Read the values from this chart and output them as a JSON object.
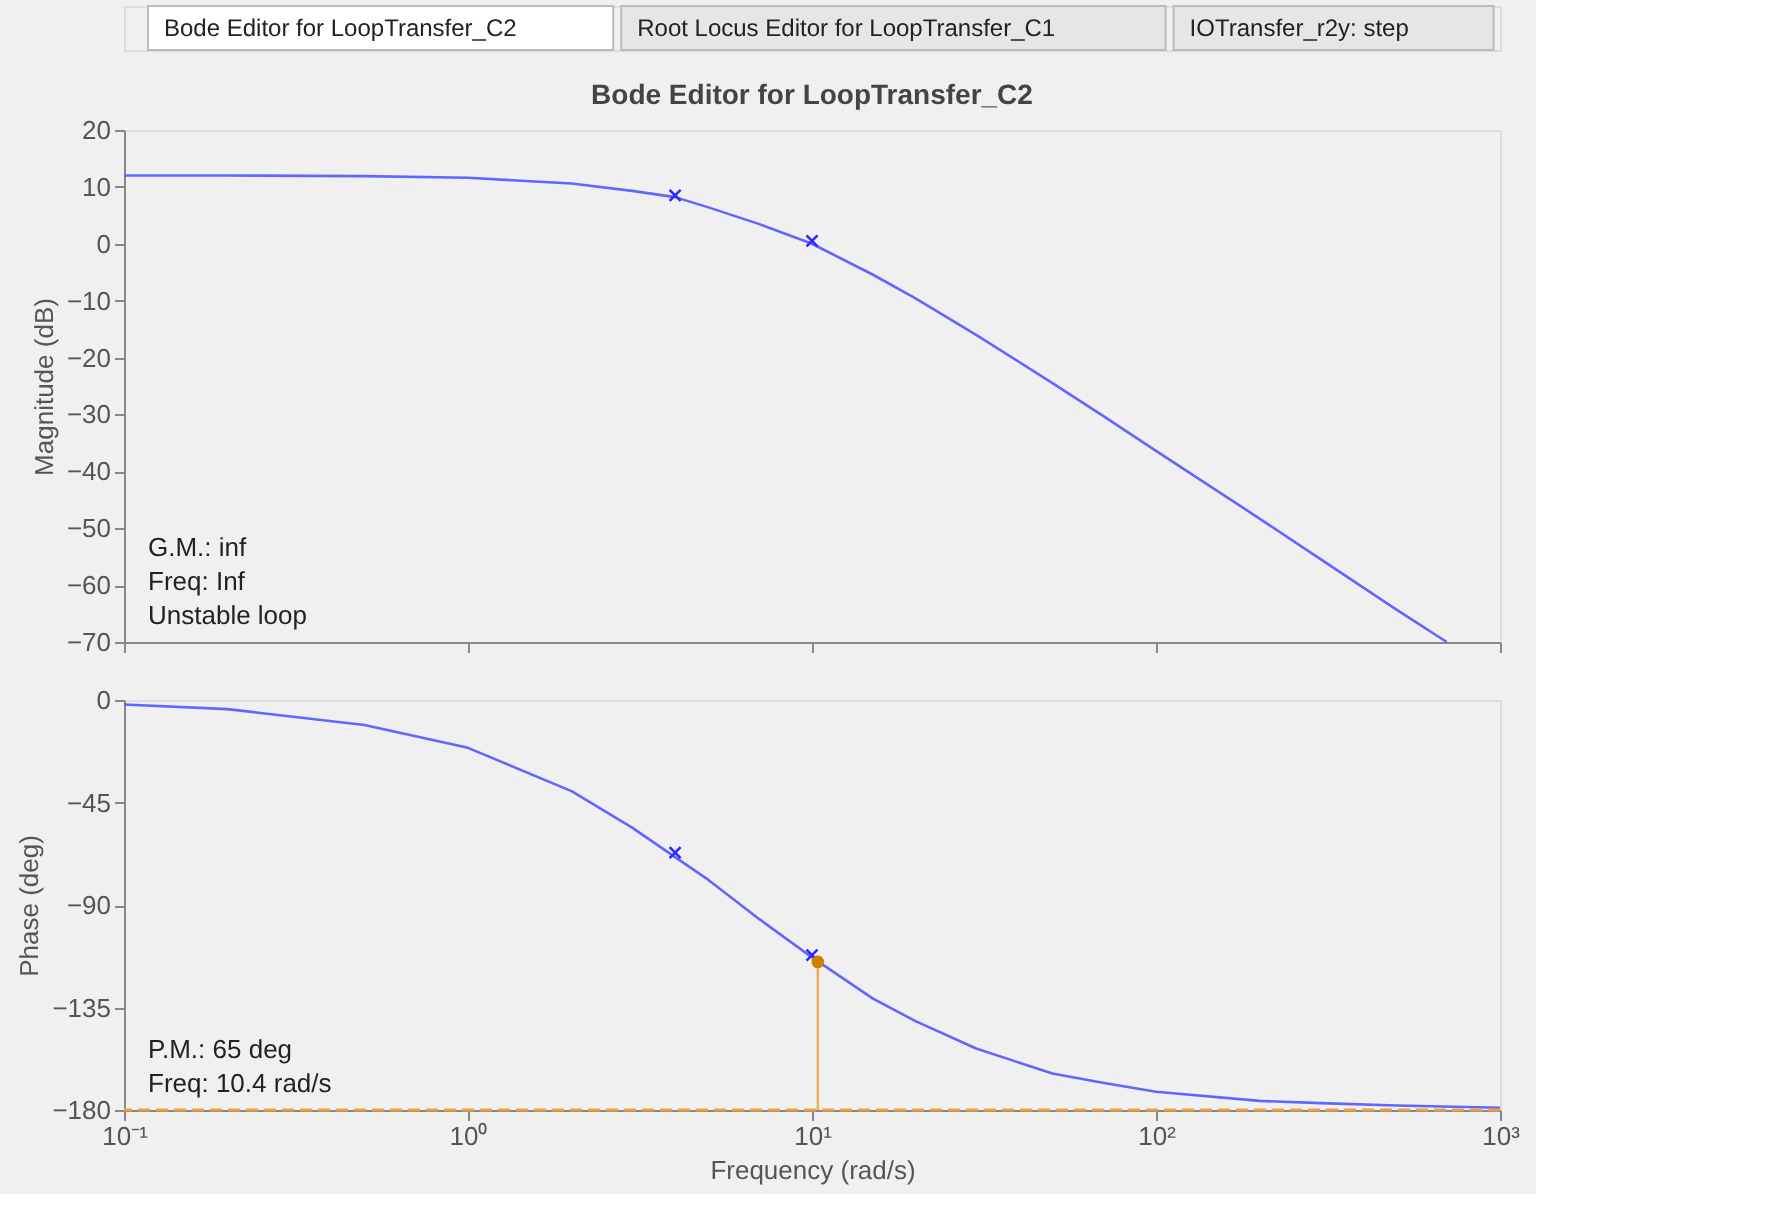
{
  "chart_data": [
    {
      "type": "other",
      "annotations": [
        "Bode Editor for LoopTransfer_C2",
        "Root Locus Editor for LoopTransfer_C1",
        "IOTransfer_r2y: step"
      ]
    },
    {
      "type": "line",
      "title": "Bode Editor for LoopTransfer_C2",
      "ylabel": "Magnitude (dB)",
      "xlim": [
        0.1,
        1000
      ],
      "ylim": [
        -70,
        20
      ],
      "xticks": [
        {
          "value": 0.1,
          "label": null
        },
        {
          "value": 1,
          "label": null
        },
        {
          "value": 10,
          "label": null
        },
        {
          "value": 100,
          "label": null
        },
        {
          "value": 1000,
          "label": null
        }
      ],
      "yticks": [
        -70,
        -60,
        -50,
        -40,
        -30,
        -20,
        -10,
        0,
        10,
        20
      ],
      "log": "x",
      "grid": false,
      "tick_labels": "y",
      "series": [
        {
          "type": "line",
          "color": "#6464ff",
          "x": [
            0.1,
            0.2,
            0.5,
            1,
            2,
            3,
            4,
            5,
            7,
            10,
            15,
            20,
            30,
            50,
            70,
            100,
            200,
            300,
            500,
            700
          ],
          "values": [
            12.0,
            12.0,
            11.9,
            11.6,
            10.6,
            9.3,
            8.2,
            6.4,
            3.5,
            0.0,
            -5.4,
            -9.6,
            -16.0,
            -24.5,
            -30.2,
            -36.4,
            -48.3,
            -55.4,
            -64.3,
            -70
          ]
        },
        {
          "type": "scatter",
          "marker": "cross",
          "color": "#2a2aff",
          "x": [
            4,
            10
          ],
          "values": [
            8.5,
            0.5
          ]
        }
      ],
      "annotations": [
        "G.M.: inf",
        "Freq: Inf",
        "Unstable loop"
      ]
    },
    {
      "type": "line",
      "xlabel": "Frequency (rad/s)",
      "ylabel": "Phase (deg)",
      "xlim": [
        0.1,
        1000
      ],
      "ylim": [
        -180,
        0
      ],
      "xticks": [
        {
          "value": 0.1,
          "label": "10⁻¹"
        },
        {
          "value": 1,
          "label": "10⁰"
        },
        {
          "value": 10,
          "label": "10¹"
        },
        {
          "value": 100,
          "label": "10²"
        },
        {
          "value": 1000,
          "label": "10³"
        }
      ],
      "yticks": [
        -180,
        -135,
        -90,
        -45,
        0
      ],
      "log": "x",
      "grid": false,
      "series": [
        {
          "type": "line",
          "color": "#6464ff",
          "x": [
            0.1,
            0.2,
            0.5,
            1,
            2,
            3,
            4,
            5,
            7,
            10,
            15,
            20,
            30,
            50,
            70,
            100,
            200,
            300,
            500,
            1000
          ],
          "values": [
            -2,
            -4,
            -11,
            -21,
            -40,
            -56,
            -69,
            -79,
            -96,
            -113,
            -131,
            -141,
            -153,
            -164,
            -168,
            -172,
            -176,
            -177,
            -178,
            -179
          ]
        },
        {
          "type": "scatter",
          "marker": "cross",
          "color": "#2a2aff",
          "x": [
            4,
            10
          ],
          "values": [
            -67,
            -112
          ]
        },
        {
          "type": "line",
          "color": "#e8b060",
          "x": [
            10.4,
            10.4
          ],
          "values": [
            -180,
            -115
          ]
        },
        {
          "type": "scatter",
          "marker": "circle",
          "color": "#d08000",
          "x": [
            10.4
          ],
          "values": [
            -115
          ]
        }
      ],
      "ref_lines": [
        {
          "axis": "y",
          "value": -180,
          "color": "#e8a040",
          "line_style": "dashed"
        }
      ],
      "annotations": [
        "P.M.: 65 deg",
        "Freq: 10.4 rad/s"
      ]
    }
  ]
}
